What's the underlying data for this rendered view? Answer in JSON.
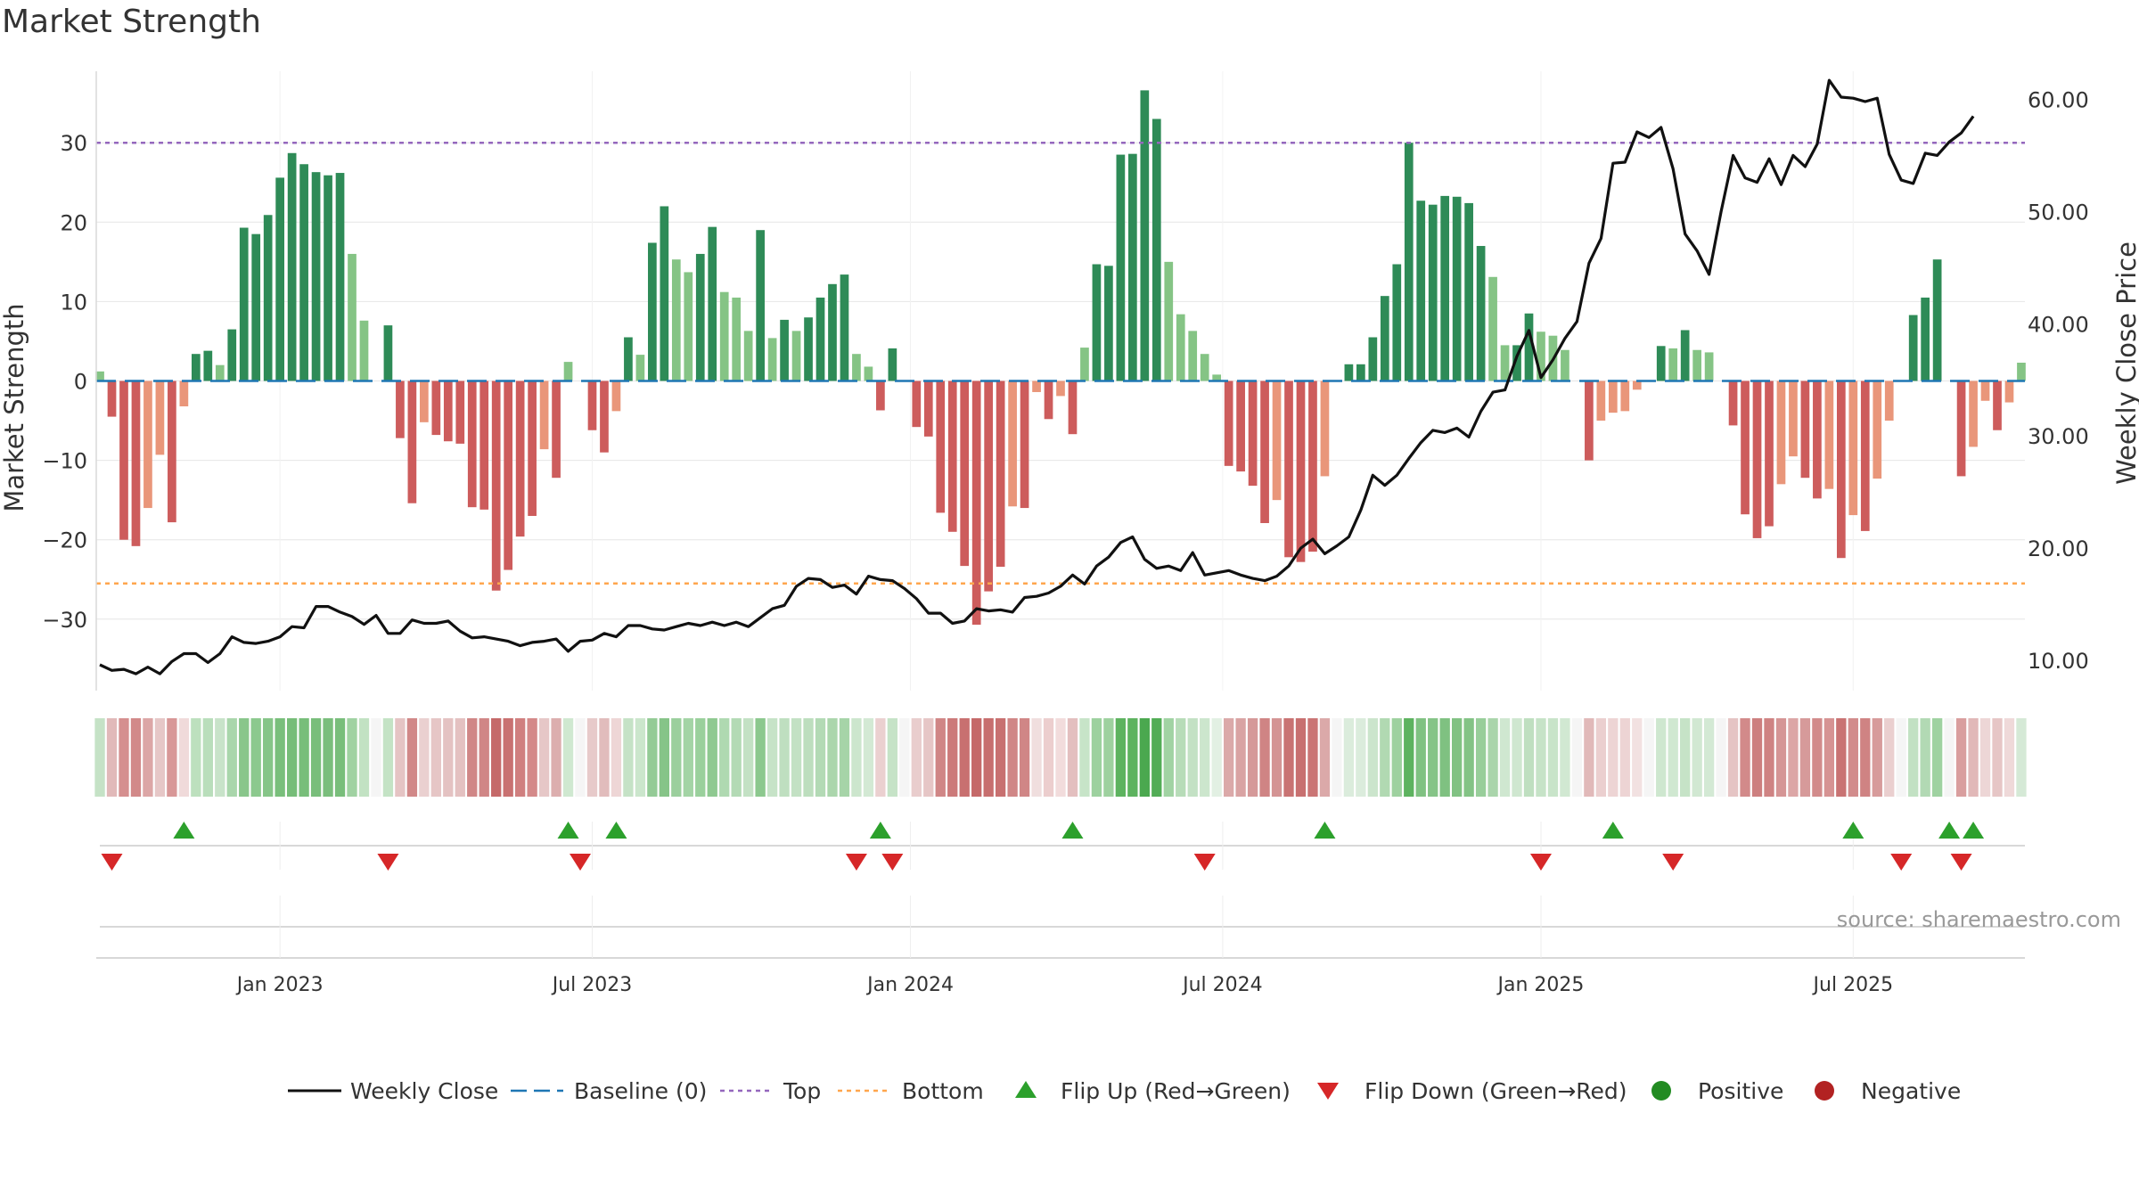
{
  "title": "Market Strength",
  "source": "source: sharemaestro.com",
  "chart_data": {
    "type": "bar",
    "left_axis": {
      "label": "Market Strength",
      "ticks": [
        30,
        20,
        10,
        0,
        -10,
        -20,
        -30
      ],
      "tick_labels": [
        "30",
        "20",
        "10",
        "0",
        "−10",
        "−20",
        "−30"
      ],
      "range": [
        -39,
        39
      ]
    },
    "right_axis": {
      "label": "Weekly Close Price",
      "ticks": [
        10,
        20,
        30,
        40,
        50,
        60
      ],
      "tick_labels": [
        "10.00",
        "20.00",
        "30.00",
        "40.00",
        "50.00",
        "60.00"
      ],
      "range": [
        7.3,
        62.5
      ]
    },
    "x_ticks": [
      {
        "label": "Jan 2023",
        "index": 15
      },
      {
        "label": "Jul 2023",
        "index": 41
      },
      {
        "label": "Jan 2024",
        "index": 67.5
      },
      {
        "label": "Jul 2024",
        "index": 93.5
      },
      {
        "label": "Jan 2025",
        "index": 120
      },
      {
        "label": "Jul 2025",
        "index": 146
      }
    ],
    "top_level": 30,
    "bottom_level": -25.5,
    "strength": [
      1.2,
      -4.5,
      -20,
      -20.8,
      -16,
      -9.3,
      -17.8,
      -3.2,
      3.4,
      3.8,
      2,
      6.5,
      19.3,
      18.5,
      20.9,
      25.6,
      28.7,
      27.3,
      26.3,
      25.9,
      26.2,
      16,
      7.6,
      0,
      7,
      -7.2,
      -15.4,
      -5.2,
      -6.8,
      -7.6,
      -7.9,
      -15.9,
      -16.2,
      -26.4,
      -23.8,
      -19.6,
      -17,
      -8.6,
      -12.2,
      2.4,
      0,
      -6.2,
      -9,
      -3.8,
      5.5,
      3.3,
      17.4,
      22,
      15.3,
      13.7,
      16,
      19.4,
      11.2,
      10.5,
      6.3,
      19,
      5.4,
      7.7,
      6.3,
      8,
      10.5,
      12.2,
      13.4,
      3.4,
      1.8,
      -3.7,
      4.1,
      0,
      -5.8,
      -7,
      -16.6,
      -19,
      -23.3,
      -30.7,
      -26.5,
      -23.4,
      -15.8,
      -16,
      -1.4,
      -4.8,
      -1.9,
      -6.7,
      4.2,
      14.7,
      14.5,
      28.5,
      28.6,
      36.6,
      33,
      15,
      8.4,
      6.3,
      3.4,
      0.8,
      -10.7,
      -11.4,
      -13.2,
      -17.9,
      -15,
      -22.2,
      -22.8,
      -21.5,
      -12,
      0,
      2.1,
      2.1,
      5.5,
      10.7,
      14.7,
      30,
      22.7,
      22.2,
      23.3,
      23.2,
      22.4,
      17,
      13.1,
      4.5,
      4.5,
      8.5,
      6.2,
      5.7,
      3.9,
      0,
      -10,
      -5,
      -4,
      -3.8,
      -1.1,
      0,
      4.4,
      4.1,
      6.4,
      3.9,
      3.6,
      0,
      -5.6,
      -16.8,
      -19.8,
      -18.3,
      -13,
      -9.5,
      -12.2,
      -14.8,
      -13.6,
      -22.3,
      -16.9,
      -18.9,
      -12.3,
      -5,
      0,
      8.3,
      10.5,
      15.3,
      0,
      -12,
      -8.3,
      -2.5,
      -6.2,
      -2.7,
      2.3
    ],
    "weekly_close": [
      9.6,
      9.1,
      9.2,
      8.8,
      9.4,
      8.8,
      9.9,
      10.6,
      10.6,
      9.8,
      10.6,
      12.1,
      11.6,
      11.5,
      11.7,
      12.1,
      13,
      12.9,
      14.8,
      14.8,
      14.3,
      13.9,
      13.2,
      14,
      12.4,
      12.4,
      13.6,
      13.3,
      13.3,
      13.5,
      12.6,
      12,
      12.1,
      11.9,
      11.7,
      11.3,
      11.6,
      11.7,
      11.9,
      10.8,
      11.7,
      11.8,
      12.4,
      12.1,
      13.1,
      13.1,
      12.8,
      12.7,
      13,
      13.3,
      13.1,
      13.4,
      13.1,
      13.4,
      13,
      13.8,
      14.6,
      14.9,
      16.6,
      17.3,
      17.2,
      16.5,
      16.7,
      15.9,
      17.5,
      17.2,
      17.1,
      16.4,
      15.5,
      14.2,
      14.2,
      13.3,
      13.5,
      14.6,
      14.4,
      14.5,
      14.3,
      15.6,
      15.7,
      16,
      16.6,
      17.6,
      16.8,
      18.4,
      19.2,
      20.5,
      21,
      19,
      18.2,
      18.4,
      18,
      19.6,
      17.6,
      17.8,
      18,
      17.6,
      17.3,
      17.1,
      17.5,
      18.4,
      20,
      20.8,
      19.5,
      20.2,
      21,
      23.4,
      26.5,
      25.6,
      26.5,
      28,
      29.4,
      30.5,
      30.3,
      30.7,
      29.9,
      32.2,
      33.9,
      34.1,
      37.1,
      39.4,
      35.2,
      36.8,
      38.7,
      40.2,
      45.4,
      47.6,
      54.3,
      54.4,
      57.1,
      56.6,
      57.5,
      53.8,
      48,
      46.5,
      44.4,
      50,
      55,
      53,
      52.6,
      54.7,
      52.4,
      55,
      54,
      56,
      61.7,
      60.2,
      60.1,
      59.8,
      60.1,
      55.1,
      52.8,
      52.5,
      55.2,
      55,
      56.2,
      57,
      58.5
    ],
    "flip_up": [
      7,
      39,
      43,
      65,
      81,
      102,
      126,
      146,
      154,
      156
    ],
    "flip_down": [
      1,
      24,
      40,
      63,
      66,
      92,
      120,
      131,
      150,
      155
    ],
    "heat_colors": [
      "#c5e2c6",
      "#e1b9b9",
      "#d58f8f",
      "#d28989",
      "#dca6a6",
      "#e6c7c7",
      "#d89797",
      "#f0dada",
      "#bde0be",
      "#b9debb",
      "#c8e3c9",
      "#a9d6ab",
      "#89c68b",
      "#8cc98e",
      "#86c588",
      "#79bf7b",
      "#76bd78",
      "#78be7a",
      "#79be7b",
      "#7abe7c",
      "#79be7b",
      "#a0d2a2",
      "#c2e2c3",
      "#f5f5f5",
      "#c4e3c5",
      "#e5c4c4",
      "#d18888",
      "#ead0d0",
      "#e6c6c6",
      "#e4c2c2",
      "#e4c1c1",
      "#d08686",
      "#d08686",
      "#c56969",
      "#c97171",
      "#d07f7f",
      "#d48989",
      "#e6c7c7",
      "#dcaeae",
      "#cfe8d0",
      "#f5f5f5",
      "#e7caca",
      "#e1bcbc",
      "#eed6d6",
      "#c5e2c6",
      "#cbe6cc",
      "#94cb96",
      "#86c488",
      "#9bcf9d",
      "#a3d4a5",
      "#9ad09c",
      "#8fc991",
      "#afd9b1",
      "#b3dab5",
      "#c3e1c4",
      "#8cc88e",
      "#c6e3c7",
      "#bfdfc0",
      "#c3e1c4",
      "#bddebe",
      "#b3dab5",
      "#abd6ac",
      "#a6d4a8",
      "#cce6cd",
      "#d3e9d4",
      "#ebd0d0",
      "#c6e3c7",
      "#f5f5f5",
      "#e9cdcd",
      "#e6c6c6",
      "#d08686",
      "#cc7a7a",
      "#c87070",
      "#c56969",
      "#c76e6e",
      "#c87070",
      "#d08686",
      "#d08686",
      "#f0dede",
      "#eccece",
      "#f2dcdc",
      "#e3bfbf",
      "#c7e4c8",
      "#9dd19f",
      "#9ed19f",
      "#5db35f",
      "#5db35f",
      "#4ba84f",
      "#52ad56",
      "#a1d3a3",
      "#b7dcb8",
      "#c3e1c4",
      "#cce6cd",
      "#e2f0e3",
      "#dba9a9",
      "#d9a3a3",
      "#d59999",
      "#cf8484",
      "#d49494",
      "#c97373",
      "#c87070",
      "#ca7575",
      "#dba9a9",
      "#f5f5f5",
      "#dbecdc",
      "#dbecdc",
      "#cbe5cc",
      "#b1d9b2",
      "#9ed19f",
      "#5db35f",
      "#80c282",
      "#85c487",
      "#7fc181",
      "#81c283",
      "#83c385",
      "#98ce9a",
      "#aad5ab",
      "#cfe7d0",
      "#cfe7d0",
      "#bfdfc0",
      "#c6e3c7",
      "#c8e4c9",
      "#d1e8d2",
      "#f5f5f5",
      "#e1b9b9",
      "#ebcfcf",
      "#edd4d4",
      "#edd4d4",
      "#f2e1e1",
      "#f5f5f5",
      "#cee7cf",
      "#d0e8d1",
      "#c6e3c7",
      "#d1e8d2",
      "#d3e9d4",
      "#f5f5f5",
      "#e5c4c4",
      "#d28a8a",
      "#cd7f7f",
      "#cf8383",
      "#d59595",
      "#dca6a6",
      "#d69a9a",
      "#d28b8b",
      "#d69393",
      "#c97373",
      "#d28c8c",
      "#cf8383",
      "#d79b9b",
      "#eacfcf",
      "#f5f5f5",
      "#c2e1c3",
      "#b2d9b4",
      "#9fd2a1",
      "#f5f5f5",
      "#d99e9e",
      "#e1b8b8",
      "#edd6d6",
      "#e6c6c6",
      "#efd9d9",
      "#d5e9d6"
    ],
    "legend": [
      "Weekly Close",
      "Baseline (0)",
      "Top",
      "Bottom",
      "Flip Up (Red→Green)",
      "Flip Down (Green→Red)",
      "Positive",
      "Negative"
    ],
    "colors": {
      "pos_strong": "#2e8b57",
      "pos_weak": "#85c485",
      "neg_strong": "#cd5c5c",
      "neg_weak": "#e9967a",
      "baseline": "#1f77b4",
      "top": "#9467bd",
      "bottom": "#ffa64d",
      "close": "#111111",
      "flip_up": "#2ca02c",
      "flip_down": "#d62728",
      "positive_dot": "#228b22",
      "negative_dot": "#b22222",
      "grid": "#e6e6e6",
      "axis_text": "#333333"
    }
  }
}
